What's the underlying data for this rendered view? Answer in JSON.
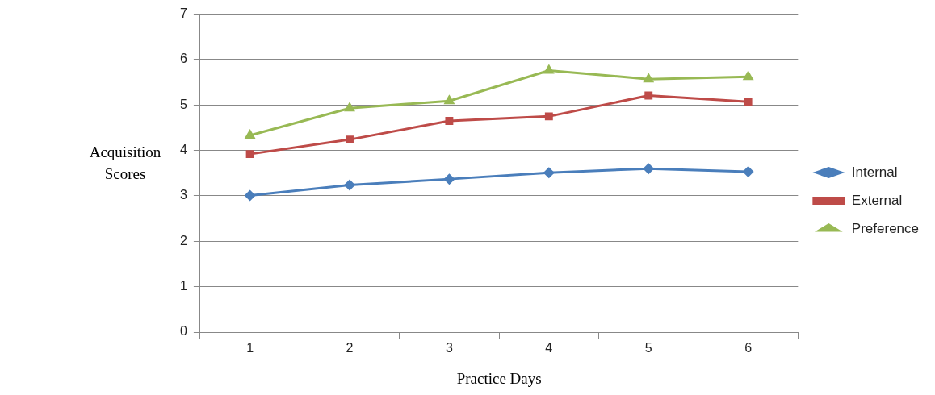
{
  "chart_data": {
    "type": "line",
    "xlabel": "Practice Days",
    "ylabel": "Acquisition Scores",
    "categories": [
      "1",
      "2",
      "3",
      "4",
      "5",
      "6"
    ],
    "ylim": [
      0,
      7
    ],
    "yticks": [
      0,
      1,
      2,
      3,
      4,
      5,
      6,
      7
    ],
    "grid": "y",
    "legend": "right",
    "line_style": "solid",
    "series": [
      {
        "name": "Internal",
        "color": "#4a7ebb",
        "marker": "diamond",
        "values": [
          3.01,
          3.24,
          3.37,
          3.51,
          3.6,
          3.53
        ]
      },
      {
        "name": "External",
        "color": "#be4b48",
        "marker": "square",
        "values": [
          3.92,
          4.24,
          4.65,
          4.75,
          5.21,
          5.07
        ]
      },
      {
        "name": "Preference",
        "color": "#98b954",
        "marker": "triangle",
        "values": [
          4.33,
          4.93,
          5.09,
          5.76,
          5.57,
          5.62
        ]
      }
    ]
  }
}
